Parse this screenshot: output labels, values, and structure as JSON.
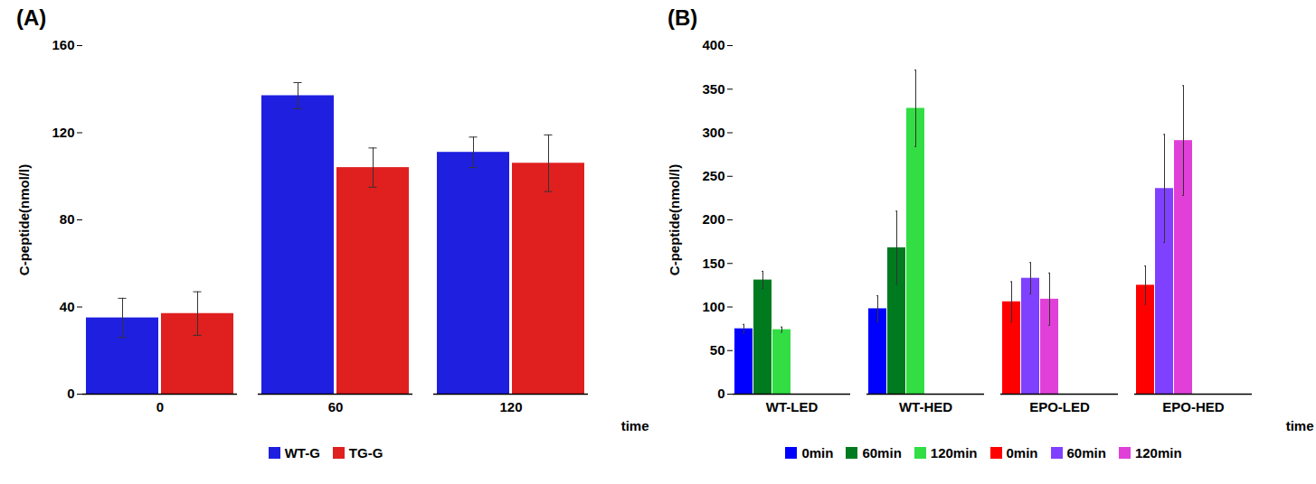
{
  "chart_data": [
    {
      "type": "bar",
      "title": "(A)",
      "x_label": "time",
      "y_label": "C-peptide(nmol/l)",
      "categories": [
        0,
        60,
        120
      ],
      "series": [
        {
          "name": "WT-G",
          "color": "#1f1fe0",
          "values": [
            35,
            137,
            111
          ],
          "errors": [
            9,
            6,
            7
          ]
        },
        {
          "name": "TG-G",
          "color": "#e01f1f",
          "values": [
            37,
            104,
            106
          ],
          "errors": [
            10,
            9,
            13
          ]
        }
      ],
      "ylim": [
        0,
        160
      ],
      "yticks": [
        0,
        40,
        80,
        120,
        160
      ],
      "grid": false,
      "legend": "bottom"
    },
    {
      "type": "bar",
      "title": "(B)",
      "x_label": "time",
      "y_label": "C-peptide(nmol/l)",
      "categories": [
        "WT-LED",
        "WT-HED",
        "EPO-LED",
        "EPO-HED"
      ],
      "series": [
        {
          "name": "0min",
          "color": "#0000ff",
          "values": [
            75,
            98,
            null,
            null
          ],
          "errors": [
            5,
            15,
            null,
            null
          ]
        },
        {
          "name": "60min",
          "color": "#007a1f",
          "values": [
            131,
            168,
            null,
            null
          ],
          "errors": [
            10,
            42,
            null,
            null
          ]
        },
        {
          "name": "120min",
          "color": "#33dd44",
          "values": [
            74,
            328,
            null,
            null
          ],
          "errors": [
            3,
            44,
            null,
            null
          ]
        },
        {
          "name": "0min",
          "color": "#ff0000",
          "values": [
            null,
            null,
            106,
            125
          ],
          "errors": [
            null,
            null,
            23,
            22
          ]
        },
        {
          "name": "60min",
          "color": "#8040ff",
          "values": [
            null,
            null,
            133,
            236
          ],
          "errors": [
            null,
            null,
            18,
            62
          ]
        },
        {
          "name": "120min",
          "color": "#e040d8",
          "values": [
            null,
            null,
            109,
            291
          ],
          "errors": [
            null,
            null,
            30,
            63
          ]
        }
      ],
      "ylim": [
        0,
        400
      ],
      "yticks": [
        0,
        50,
        100,
        150,
        200,
        250,
        300,
        350,
        400
      ],
      "grid": false,
      "legend": "bottom"
    }
  ]
}
